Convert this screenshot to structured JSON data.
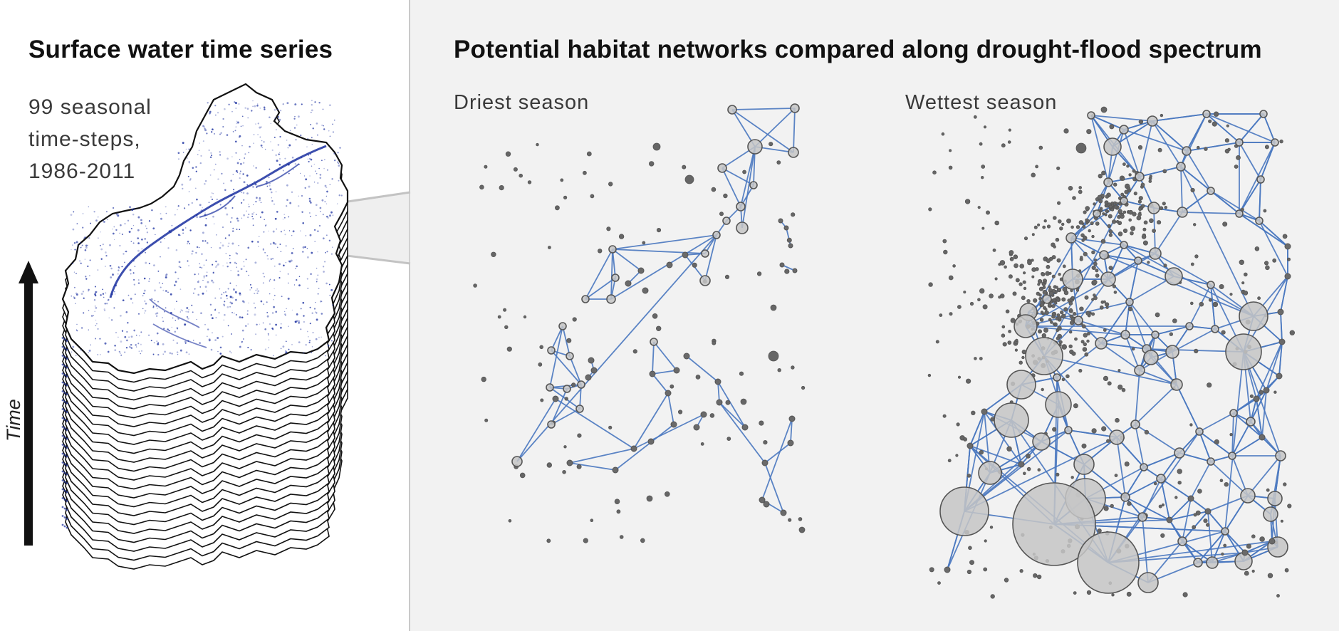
{
  "left_panel": {
    "title": "Surface water time series",
    "subtitle_lines": [
      "99 seasonal",
      "time-steps,",
      "1986-2011"
    ],
    "axis_label": "Time"
  },
  "right_panel": {
    "title": "Potential habitat networks compared along drought-flood spectrum",
    "driest_label": "Driest season",
    "wettest_label": "Wettest season"
  },
  "colors": {
    "edge": "#4a78c0",
    "node_fill": "#c6c6c6",
    "node_stroke": "#555555",
    "water": "#1a2fa0",
    "panel_bg": "#f2f2f2"
  }
}
